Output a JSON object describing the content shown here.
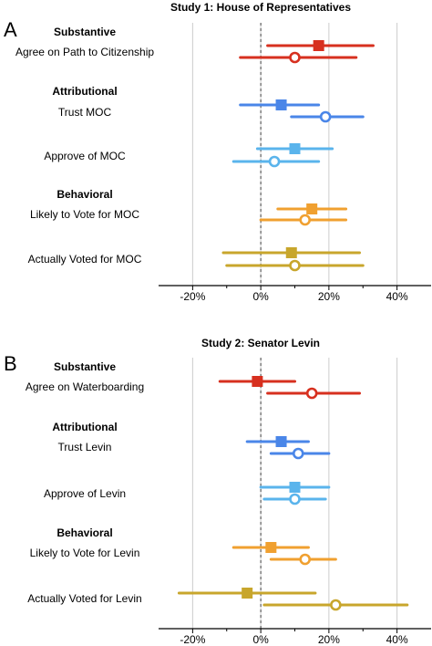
{
  "panels": [
    {
      "letter": "A",
      "title": "Study 1: House of Representatives"
    },
    {
      "letter": "B",
      "title": "Study 2: Senator Levin"
    }
  ],
  "colors": {
    "substantive": "#d7301f",
    "trust": "#4a86e8",
    "approve": "#5ab4ec",
    "likely": "#f0a030",
    "voted": "#c8a62c",
    "grid": "#cccccc",
    "zero_line": "#444444"
  },
  "chart_data": [
    {
      "type": "scatter",
      "title": "Study 1: House of Representatives",
      "xlim": [
        -30,
        50
      ],
      "xticks": [
        -20,
        0,
        20,
        40
      ],
      "xtick_labels": [
        "-20%",
        "0%",
        "20%",
        "40%"
      ],
      "grid": true,
      "marker_legend": "none",
      "groups": [
        {
          "heading": "Substantive",
          "rows": [
            {
              "label": "Agree on Path to Citizenship",
              "color_key": "substantive",
              "estimates": [
                {
                  "marker": "filled-square",
                  "value": 17,
                  "ci": [
                    2,
                    33
                  ]
                },
                {
                  "marker": "open-circle",
                  "value": 10,
                  "ci": [
                    -6,
                    28
                  ]
                }
              ]
            }
          ]
        },
        {
          "heading": "Attributional",
          "rows": [
            {
              "label": "Trust MOC",
              "color_key": "trust",
              "estimates": [
                {
                  "marker": "filled-square",
                  "value": 6,
                  "ci": [
                    -6,
                    17
                  ]
                },
                {
                  "marker": "open-circle",
                  "value": 19,
                  "ci": [
                    9,
                    30
                  ]
                }
              ]
            },
            {
              "label": "Approve of MOC",
              "color_key": "approve",
              "estimates": [
                {
                  "marker": "filled-square",
                  "value": 10,
                  "ci": [
                    -1,
                    21
                  ]
                },
                {
                  "marker": "open-circle",
                  "value": 4,
                  "ci": [
                    -8,
                    17
                  ]
                }
              ]
            }
          ]
        },
        {
          "heading": "Behavioral",
          "rows": [
            {
              "label": "Likely to Vote for MOC",
              "color_key": "likely",
              "estimates": [
                {
                  "marker": "filled-square",
                  "value": 15,
                  "ci": [
                    5,
                    25
                  ]
                },
                {
                  "marker": "open-circle",
                  "value": 13,
                  "ci": [
                    0,
                    25
                  ]
                }
              ]
            },
            {
              "label": "Actually Voted for MOC",
              "color_key": "voted",
              "estimates": [
                {
                  "marker": "filled-square",
                  "value": 9,
                  "ci": [
                    -11,
                    29
                  ]
                },
                {
                  "marker": "open-circle",
                  "value": 10,
                  "ci": [
                    -10,
                    30
                  ]
                }
              ]
            }
          ]
        }
      ]
    },
    {
      "type": "scatter",
      "title": "Study 2: Senator Levin",
      "xlim": [
        -30,
        50
      ],
      "xticks": [
        -20,
        0,
        20,
        40
      ],
      "xtick_labels": [
        "-20%",
        "0%",
        "20%",
        "40%"
      ],
      "grid": true,
      "marker_legend": "none",
      "groups": [
        {
          "heading": "Substantive",
          "rows": [
            {
              "label": "Agree on Waterboarding",
              "color_key": "substantive",
              "estimates": [
                {
                  "marker": "filled-square",
                  "value": -1,
                  "ci": [
                    -12,
                    10
                  ]
                },
                {
                  "marker": "open-circle",
                  "value": 15,
                  "ci": [
                    2,
                    29
                  ]
                }
              ]
            }
          ]
        },
        {
          "heading": "Attributional",
          "rows": [
            {
              "label": "Trust Levin",
              "color_key": "trust",
              "estimates": [
                {
                  "marker": "filled-square",
                  "value": 6,
                  "ci": [
                    -4,
                    14
                  ]
                },
                {
                  "marker": "open-circle",
                  "value": 11,
                  "ci": [
                    3,
                    20
                  ]
                }
              ]
            },
            {
              "label": "Approve of Levin",
              "color_key": "approve",
              "estimates": [
                {
                  "marker": "filled-square",
                  "value": 10,
                  "ci": [
                    0,
                    20
                  ]
                },
                {
                  "marker": "open-circle",
                  "value": 10,
                  "ci": [
                    1,
                    19
                  ]
                }
              ]
            }
          ]
        },
        {
          "heading": "Behavioral",
          "rows": [
            {
              "label": "Likely to Vote for Levin",
              "color_key": "likely",
              "estimates": [
                {
                  "marker": "filled-square",
                  "value": 3,
                  "ci": [
                    -8,
                    14
                  ]
                },
                {
                  "marker": "open-circle",
                  "value": 13,
                  "ci": [
                    3,
                    22
                  ]
                }
              ]
            },
            {
              "label": "Actually Voted for Levin",
              "color_key": "voted",
              "estimates": [
                {
                  "marker": "filled-square",
                  "value": -4,
                  "ci": [
                    -24,
                    16
                  ]
                },
                {
                  "marker": "open-circle",
                  "value": 22,
                  "ci": [
                    1,
                    43
                  ]
                }
              ]
            }
          ]
        }
      ]
    }
  ]
}
